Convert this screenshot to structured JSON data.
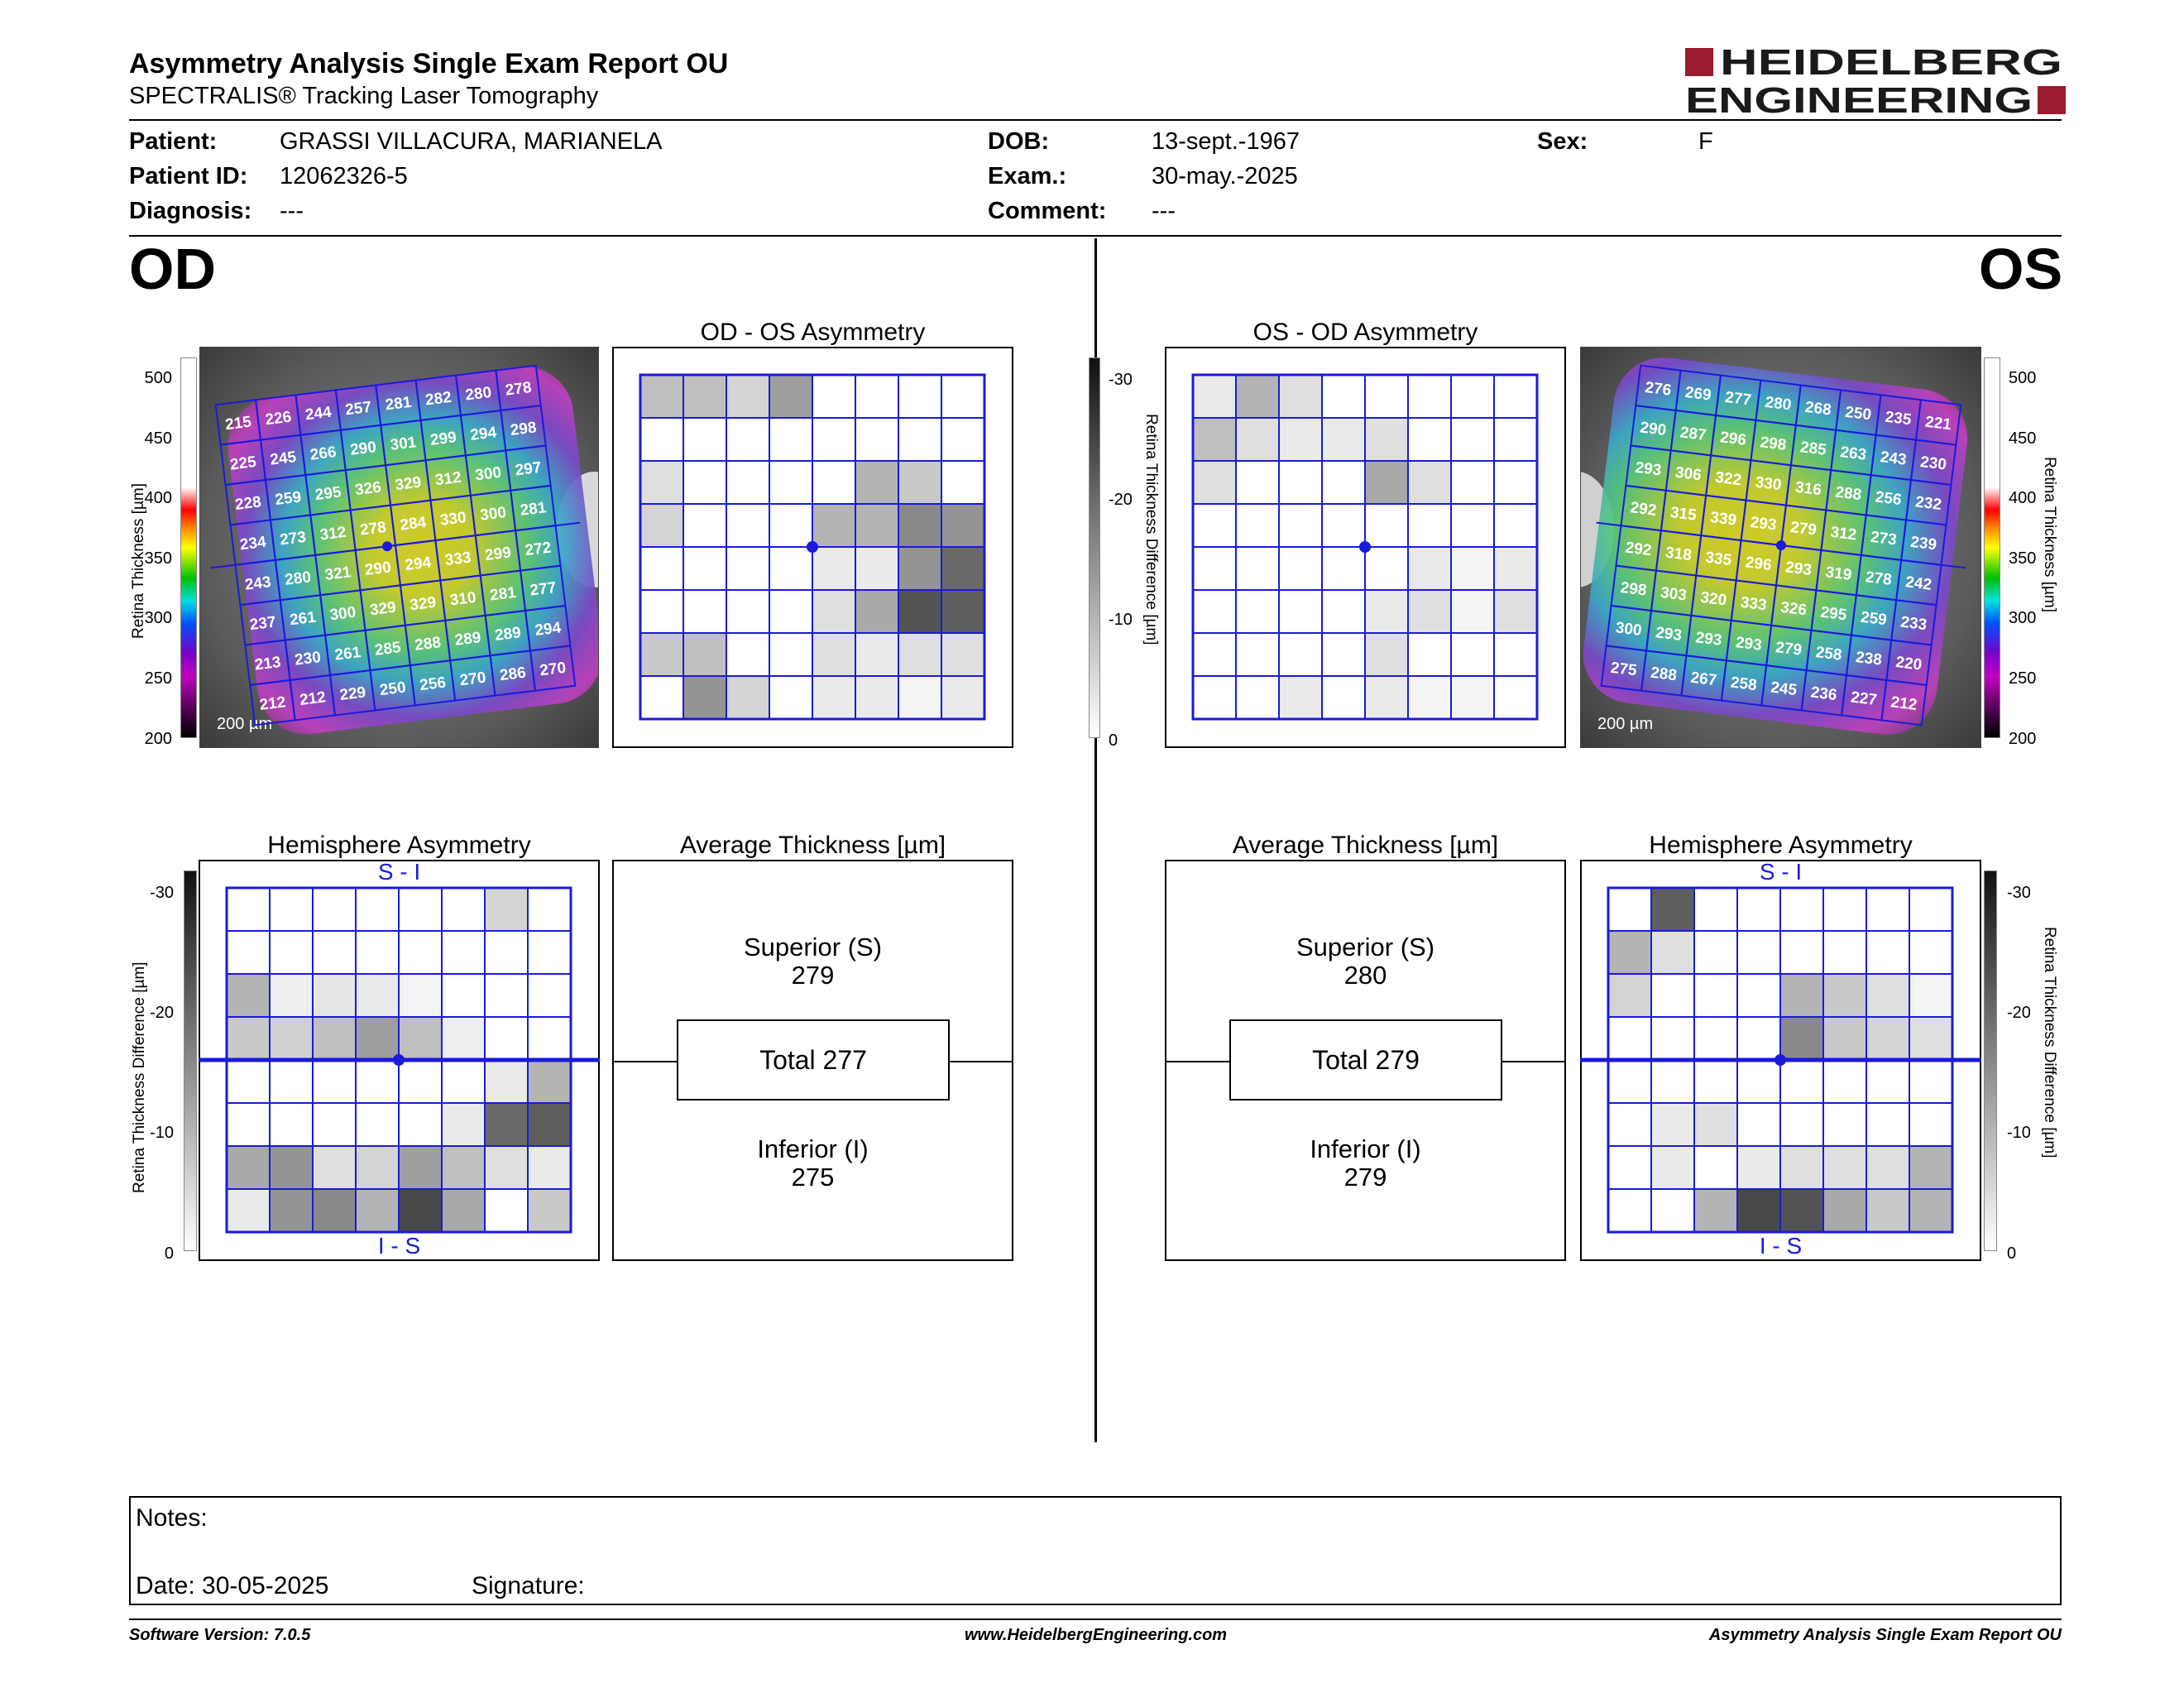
{
  "header": {
    "title": "Asymmetry Analysis Single Exam Report OU",
    "subtitle": "SPECTRALIS® Tracking Laser Tomography",
    "logo_line1": "HEIDELBERG",
    "logo_line2": "ENGINEERING"
  },
  "patient": {
    "patient_label": "Patient:",
    "patient_value": "GRASSI VILLACURA, MARIANELA",
    "id_label": "Patient ID:",
    "id_value": "12062326-5",
    "diagnosis_label": "Diagnosis:",
    "diagnosis_value": "---",
    "dob_label": "DOB:",
    "dob_value": "13-sept.-1967",
    "exam_label": "Exam.:",
    "exam_value": "30-may.-2025",
    "comment_label": "Comment:",
    "comment_value": "---",
    "sex_label": "Sex:",
    "sex_value": "F"
  },
  "od": {
    "eye": "OD",
    "asym_title": "OD - OS Asymmetry",
    "hemi_title": "Hemisphere Asymmetry",
    "avg_title": "Average Thickness [µm]",
    "superior_label": "Superior (S)",
    "superior_value": "279",
    "total_label": "Total 277",
    "inferior_label": "Inferior (I)",
    "inferior_value": "275",
    "scale_label": "200 µm",
    "thickness_grid": [
      [
        215,
        226,
        244,
        257,
        281,
        282,
        280,
        278
      ],
      [
        225,
        245,
        266,
        290,
        301,
        299,
        294,
        298
      ],
      [
        228,
        259,
        295,
        326,
        329,
        312,
        300,
        297
      ],
      [
        234,
        273,
        312,
        278,
        284,
        330,
        300,
        281
      ],
      [
        243,
        280,
        321,
        290,
        294,
        333,
        299,
        272
      ],
      [
        237,
        261,
        300,
        329,
        329,
        310,
        281,
        277
      ],
      [
        213,
        230,
        261,
        285,
        288,
        289,
        289,
        294
      ],
      [
        212,
        212,
        229,
        250,
        256,
        270,
        286,
        270
      ]
    ],
    "asym_grid": [
      [
        0.3,
        0.3,
        0.2,
        0.45,
        0,
        0,
        0,
        0
      ],
      [
        0,
        0,
        0,
        0,
        0,
        0,
        0,
        0
      ],
      [
        0.15,
        0,
        0,
        0,
        0,
        0.35,
        0.25,
        0
      ],
      [
        0.2,
        0,
        0,
        0,
        0.35,
        0.35,
        0.55,
        0.5
      ],
      [
        0,
        0,
        0,
        0,
        0.1,
        0.1,
        0.5,
        0.7
      ],
      [
        0,
        0,
        0,
        0,
        0.15,
        0.4,
        0.8,
        0.75
      ],
      [
        0.25,
        0.3,
        0,
        0,
        0.15,
        0.1,
        0.15,
        0.15
      ],
      [
        0,
        0.5,
        0.2,
        0,
        0.1,
        0.1,
        0.05,
        0.1
      ]
    ],
    "hemi_grid": [
      [
        0,
        0,
        0,
        0,
        0,
        0,
        0.2,
        0
      ],
      [
        0,
        0,
        0,
        0,
        0,
        0,
        0,
        0
      ],
      [
        0.35,
        0.08,
        0.12,
        0.1,
        0.05,
        0,
        0,
        0
      ],
      [
        0.25,
        0.22,
        0.3,
        0.45,
        0.3,
        0.08,
        0,
        0
      ],
      [
        0,
        0,
        0,
        0,
        0,
        0,
        0.1,
        0.35
      ],
      [
        0,
        0,
        0,
        0,
        0,
        0.1,
        0.7,
        0.75
      ],
      [
        0.4,
        0.5,
        0.15,
        0.2,
        0.45,
        0.3,
        0.15,
        0.1
      ],
      [
        0.1,
        0.5,
        0.55,
        0.35,
        0.85,
        0.4,
        0,
        0.25
      ]
    ],
    "hemi_top": "S - I",
    "hemi_bottom": "I - S"
  },
  "os": {
    "eye": "OS",
    "asym_title": "OS - OD Asymmetry",
    "hemi_title": "Hemisphere Asymmetry",
    "avg_title": "Average Thickness [µm]",
    "superior_label": "Superior (S)",
    "superior_value": "280",
    "total_label": "Total 279",
    "inferior_label": "Inferior (I)",
    "inferior_value": "279",
    "scale_label": "200 µm",
    "thickness_grid": [
      [
        276,
        269,
        277,
        280,
        268,
        250,
        235,
        221
      ],
      [
        290,
        287,
        296,
        298,
        285,
        263,
        243,
        230
      ],
      [
        293,
        306,
        322,
        330,
        316,
        288,
        256,
        232
      ],
      [
        292,
        315,
        339,
        293,
        279,
        312,
        273,
        239
      ],
      [
        292,
        318,
        335,
        296,
        293,
        319,
        278,
        242
      ],
      [
        298,
        303,
        320,
        333,
        326,
        295,
        259,
        233
      ],
      [
        300,
        293,
        293,
        293,
        279,
        258,
        238,
        220
      ],
      [
        275,
        288,
        267,
        258,
        245,
        236,
        227,
        212
      ]
    ],
    "asym_grid": [
      [
        0.1,
        0.35,
        0.15,
        0,
        0,
        0,
        0,
        0
      ],
      [
        0.3,
        0.15,
        0.1,
        0.1,
        0.15,
        0,
        0,
        0
      ],
      [
        0.15,
        0,
        0,
        0,
        0.4,
        0.15,
        0,
        0
      ],
      [
        0,
        0,
        0,
        0,
        0,
        0,
        0,
        0
      ],
      [
        0,
        0,
        0,
        0,
        0,
        0.1,
        0.05,
        0.1
      ],
      [
        0,
        0,
        0,
        0,
        0.1,
        0.15,
        0.05,
        0.15
      ],
      [
        0,
        0,
        0,
        0,
        0.15,
        0,
        0,
        0
      ],
      [
        0,
        0,
        0.1,
        0,
        0.1,
        0.05,
        0.05,
        0
      ]
    ],
    "hemi_grid": [
      [
        0,
        0.75,
        0,
        0,
        0,
        0,
        0,
        0
      ],
      [
        0.35,
        0.15,
        0,
        0,
        0,
        0,
        0,
        0
      ],
      [
        0.2,
        0,
        0,
        0,
        0.35,
        0.25,
        0.15,
        0.05
      ],
      [
        0,
        0,
        0,
        0,
        0.55,
        0.25,
        0.2,
        0.15
      ],
      [
        0,
        0,
        0,
        0,
        0,
        0,
        0,
        0
      ],
      [
        0,
        0.1,
        0.15,
        0,
        0,
        0,
        0,
        0
      ],
      [
        0,
        0.1,
        0,
        0.1,
        0.15,
        0.15,
        0.15,
        0.35
      ],
      [
        0,
        0,
        0.35,
        0.85,
        0.8,
        0.4,
        0.25,
        0.35
      ]
    ],
    "hemi_top": "S - I",
    "hemi_bottom": "I - S"
  },
  "scales": {
    "thickness_label": "Retina  Thickness [µm]",
    "thickness_ticks": [
      "500",
      "450",
      "400",
      "350",
      "300",
      "250",
      "200"
    ],
    "diff_label": "Retina Thickness Difference [µm]",
    "diff_ticks": [
      "-30",
      "-20",
      "-10",
      "0"
    ]
  },
  "notes": {
    "notes_label": "Notes:",
    "date_label": "Date: 30-05-2025",
    "signature_label": "Signature:"
  },
  "footer": {
    "left": "Software Version: 7.0.5",
    "center": "www.HeidelbergEngineering.com",
    "right": "Asymmetry Analysis Single Exam Report OU"
  },
  "colors": {
    "grid_blue": "#1a1adb",
    "logo_red": "#9b1b30",
    "brand_dark": "#1a1a1a"
  }
}
